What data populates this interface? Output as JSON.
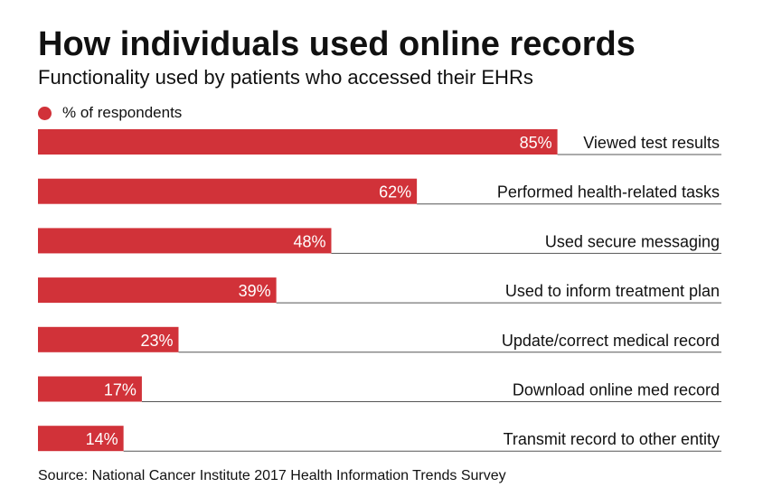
{
  "header": {
    "title": "How individuals used online records",
    "subtitle": "Functionality used by patients who accessed their EHRs"
  },
  "legend": {
    "label": "% of respondents"
  },
  "source": "Source: National Cancer Institute 2017 Health Information Trends Survey",
  "colors": {
    "bar": "#d13239",
    "rule": "#555555",
    "bar_label": "#ffffff",
    "category_label": "#111111"
  },
  "chart_data": {
    "type": "bar",
    "orientation": "horizontal",
    "categories": [
      "Viewed test results",
      "Performed health-related tasks",
      "Used secure messaging",
      "Used to inform treatment plan",
      "Update/correct medical record",
      "Download online med record",
      "Transmit record to other entity"
    ],
    "series": [
      {
        "name": "% of respondents",
        "values": [
          85,
          62,
          48,
          39,
          23,
          17,
          14
        ]
      }
    ],
    "value_suffix": "%",
    "xlim": [
      0,
      100
    ],
    "grid": false,
    "legend_position": "top-left"
  }
}
